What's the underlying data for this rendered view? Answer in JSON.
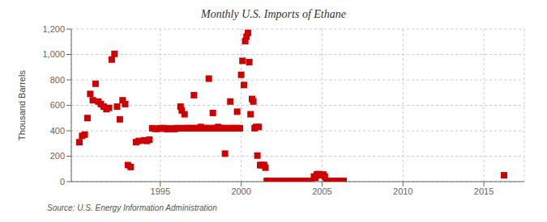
{
  "chart_data": {
    "type": "scatter",
    "title": "Monthly U.S. Imports of Ethane",
    "y_label": "Thousand Barrels",
    "annotations": [
      "Source: U.S. Energy Information Administration"
    ],
    "color": "#cc0000",
    "marker": "square",
    "grid": true,
    "xlim": [
      1989.5,
      2017.5
    ],
    "xticks": [
      1995,
      2000,
      2005,
      2010,
      2015
    ],
    "ylim": [
      0,
      1200
    ],
    "yticks": [
      0,
      200,
      400,
      600,
      800,
      {
        "value": 1000,
        "label": "1,000"
      },
      {
        "value": 1200,
        "label": "1,200"
      }
    ],
    "x": [
      1990.0,
      1990.17,
      1990.33,
      1990.5,
      1990.67,
      1990.83,
      1991.0,
      1991.17,
      1991.33,
      1991.5,
      1991.67,
      1991.83,
      1992.0,
      1992.17,
      1992.33,
      1992.5,
      1992.67,
      1992.83,
      1993.0,
      1993.17,
      1993.5,
      1993.67,
      1994.0,
      1994.17,
      1994.33,
      1994.5,
      1994.67,
      1994.83,
      1995.0,
      1995.08,
      1995.17,
      1995.25,
      1995.33,
      1995.42,
      1995.5,
      1995.58,
      1995.67,
      1995.75,
      1995.83,
      1995.92,
      1996.0,
      1996.08,
      1996.17,
      1996.25,
      1996.33,
      1996.42,
      1996.5,
      1996.58,
      1996.67,
      1996.75,
      1996.83,
      1996.92,
      1997.0,
      1997.08,
      1997.17,
      1997.25,
      1997.33,
      1997.42,
      1997.5,
      1997.58,
      1997.67,
      1997.75,
      1997.83,
      1997.92,
      1998.0,
      1998.08,
      1998.17,
      1998.25,
      1998.33,
      1998.42,
      1998.5,
      1998.58,
      1998.67,
      1998.75,
      1998.83,
      1998.92,
      1999.0,
      1999.08,
      1999.17,
      1999.25,
      1999.33,
      1999.42,
      1999.5,
      1999.58,
      1999.67,
      1999.75,
      1999.83,
      1999.92,
      2000.0,
      2000.08,
      2000.17,
      2000.25,
      2000.33,
      2000.42,
      2000.5,
      2000.58,
      2000.67,
      2000.75,
      2000.83,
      2000.92,
      2001.0,
      2001.08,
      2001.17,
      2001.25,
      2001.33,
      2001.42,
      2001.5,
      2001.58,
      2001.67,
      2001.75,
      2001.83,
      2001.92,
      2002.0,
      2002.08,
      2002.17,
      2002.25,
      2002.33,
      2002.42,
      2002.5,
      2002.58,
      2002.67,
      2002.75,
      2002.83,
      2002.92,
      2003.0,
      2003.08,
      2003.17,
      2003.25,
      2003.33,
      2003.42,
      2003.5,
      2003.58,
      2003.67,
      2003.75,
      2003.83,
      2003.92,
      2004.0,
      2004.08,
      2004.17,
      2004.25,
      2004.33,
      2004.5,
      2004.58,
      2004.67,
      2004.75,
      2004.83,
      2004.92,
      2005.0,
      2005.08,
      2005.17,
      2005.25,
      2005.33,
      2005.42,
      2005.5,
      2005.58,
      2005.67,
      2005.75,
      2005.83,
      2005.92,
      2006.0,
      2006.08,
      2006.17,
      2006.25,
      2006.33,
      2016.25
    ],
    "values": [
      310,
      360,
      370,
      500,
      690,
      640,
      770,
      630,
      610,
      590,
      570,
      580,
      960,
      1005,
      590,
      490,
      640,
      610,
      130,
      115,
      310,
      320,
      325,
      320,
      330,
      420,
      415,
      415,
      420,
      420,
      420,
      420,
      415,
      415,
      415,
      415,
      415,
      415,
      415,
      415,
      420,
      420,
      420,
      590,
      560,
      420,
      530,
      420,
      420,
      420,
      420,
      420,
      420,
      680,
      420,
      420,
      420,
      420,
      430,
      420,
      420,
      420,
      420,
      420,
      810,
      420,
      420,
      540,
      420,
      420,
      420,
      430,
      420,
      420,
      420,
      420,
      220,
      420,
      420,
      420,
      630,
      420,
      420,
      420,
      420,
      550,
      420,
      420,
      840,
      950,
      760,
      1105,
      1140,
      1170,
      940,
      530,
      650,
      630,
      420,
      430,
      205,
      430,
      130,
      130,
      130,
      130,
      110,
      5,
      5,
      5,
      5,
      5,
      5,
      5,
      5,
      5,
      5,
      5,
      5,
      5,
      5,
      5,
      5,
      5,
      5,
      5,
      5,
      5,
      5,
      5,
      5,
      5,
      5,
      5,
      5,
      5,
      5,
      5,
      5,
      5,
      5,
      40,
      30,
      55,
      60,
      55,
      50,
      55,
      55,
      40,
      5,
      5,
      5,
      5,
      5,
      5,
      5,
      5,
      5,
      5,
      5,
      5,
      5,
      5,
      50
    ]
  }
}
